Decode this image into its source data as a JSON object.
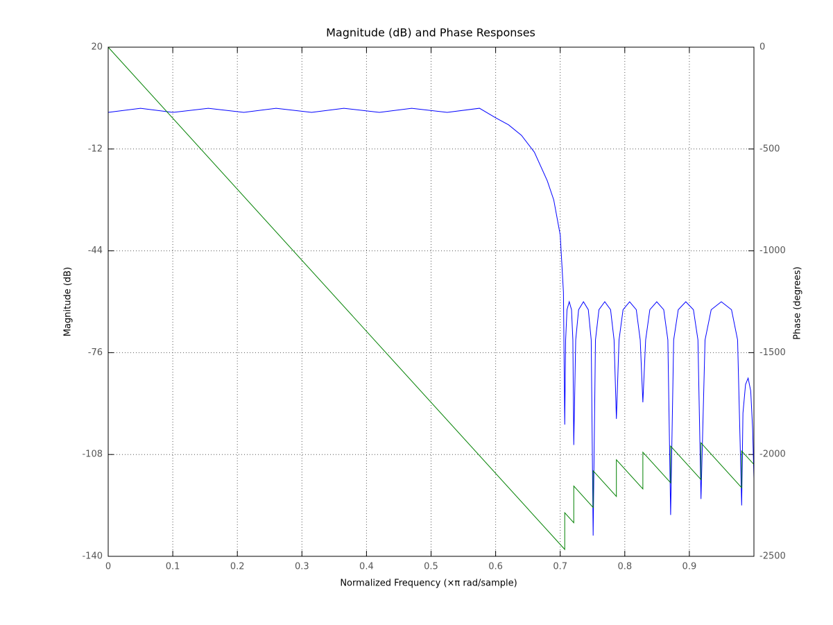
{
  "chart_data": {
    "type": "line",
    "title": "Magnitude (dB) and Phase  Responses",
    "x_label": "Normalized Frequency  (×π rad/sample)",
    "y_label": "Magnitude (dB)",
    "y2_label": "Phase (degrees)",
    "xlim": [
      0,
      1
    ],
    "xticks": [
      0,
      0.1,
      0.2,
      0.3,
      0.4,
      0.5,
      0.6,
      0.7,
      0.8,
      0.9
    ],
    "ylim": [
      -140,
      20
    ],
    "yticks": [
      -140,
      -108,
      -76,
      -44,
      -12,
      20
    ],
    "y2lim": [
      -2500,
      0
    ],
    "y2ticks": [
      -2500,
      -2000,
      -1500,
      -1000,
      -500,
      0
    ],
    "grid": true,
    "series": [
      {
        "color": "#0000ff",
        "axis": "y",
        "x": [
          0,
          0.05,
          0.1,
          0.155,
          0.21,
          0.26,
          0.315,
          0.365,
          0.42,
          0.47,
          0.525,
          0.575,
          0.6,
          0.62,
          0.64,
          0.66,
          0.68,
          0.69,
          0.7,
          0.705,
          0.707,
          0.7084,
          0.7105,
          0.714,
          0.7175,
          0.7196,
          0.721,
          0.724,
          0.7285,
          0.736,
          0.7435,
          0.748,
          0.751,
          0.7546,
          0.76,
          0.769,
          0.778,
          0.7834,
          0.787,
          0.7911,
          0.7973,
          0.8075,
          0.8178,
          0.8239,
          0.828,
          0.8323,
          0.8388,
          0.8495,
          0.8603,
          0.8667,
          0.871,
          0.8757,
          0.8828,
          0.8945,
          0.9063,
          0.9133,
          0.918,
          0.9243,
          0.9338,
          0.9495,
          0.9653,
          0.9747,
          0.981,
          0.983,
          0.987,
          0.991,
          0.995,
          0.998,
          1
        ],
        "values": [
          -0.5,
          0.8,
          -0.5,
          0.8,
          -0.5,
          0.8,
          -0.5,
          0.8,
          -0.5,
          0.8,
          -0.5,
          0.8,
          -2.2,
          -4.4,
          -7.7,
          -13,
          -22,
          -28,
          -39,
          -57,
          -98.6,
          -72,
          -62.5,
          -60,
          -62.5,
          -72,
          -105,
          -72,
          -62.5,
          -60,
          -62.5,
          -72,
          -133.5,
          -72,
          -62.5,
          -60,
          -62.5,
          -72,
          -96.8,
          -72,
          -62.5,
          -60,
          -62.5,
          -72,
          -91.6,
          -72,
          -62.5,
          -60,
          -62.5,
          -72,
          -127,
          -72,
          -62.5,
          -60,
          -62.5,
          -72,
          -122,
          -72,
          -62.5,
          -60,
          -62.5,
          -72,
          -124,
          -95,
          -86,
          -84,
          -88,
          -100,
          -115.5
        ]
      },
      {
        "color": "#008000",
        "axis": "y2",
        "x": [
          0,
          0.707,
          0.707,
          0.721,
          0.721,
          0.751,
          0.751,
          0.787,
          0.787,
          0.828,
          0.828,
          0.871,
          0.871,
          0.918,
          0.918,
          0.981,
          0.981,
          1
        ],
        "values": [
          0,
          -2466,
          -2286,
          -2335,
          -2155,
          -2260,
          -2080,
          -2206,
          -2026,
          -2169,
          -1989,
          -2139,
          -1959,
          -2123,
          -1943,
          -2163,
          -1983,
          -2049
        ]
      }
    ]
  }
}
